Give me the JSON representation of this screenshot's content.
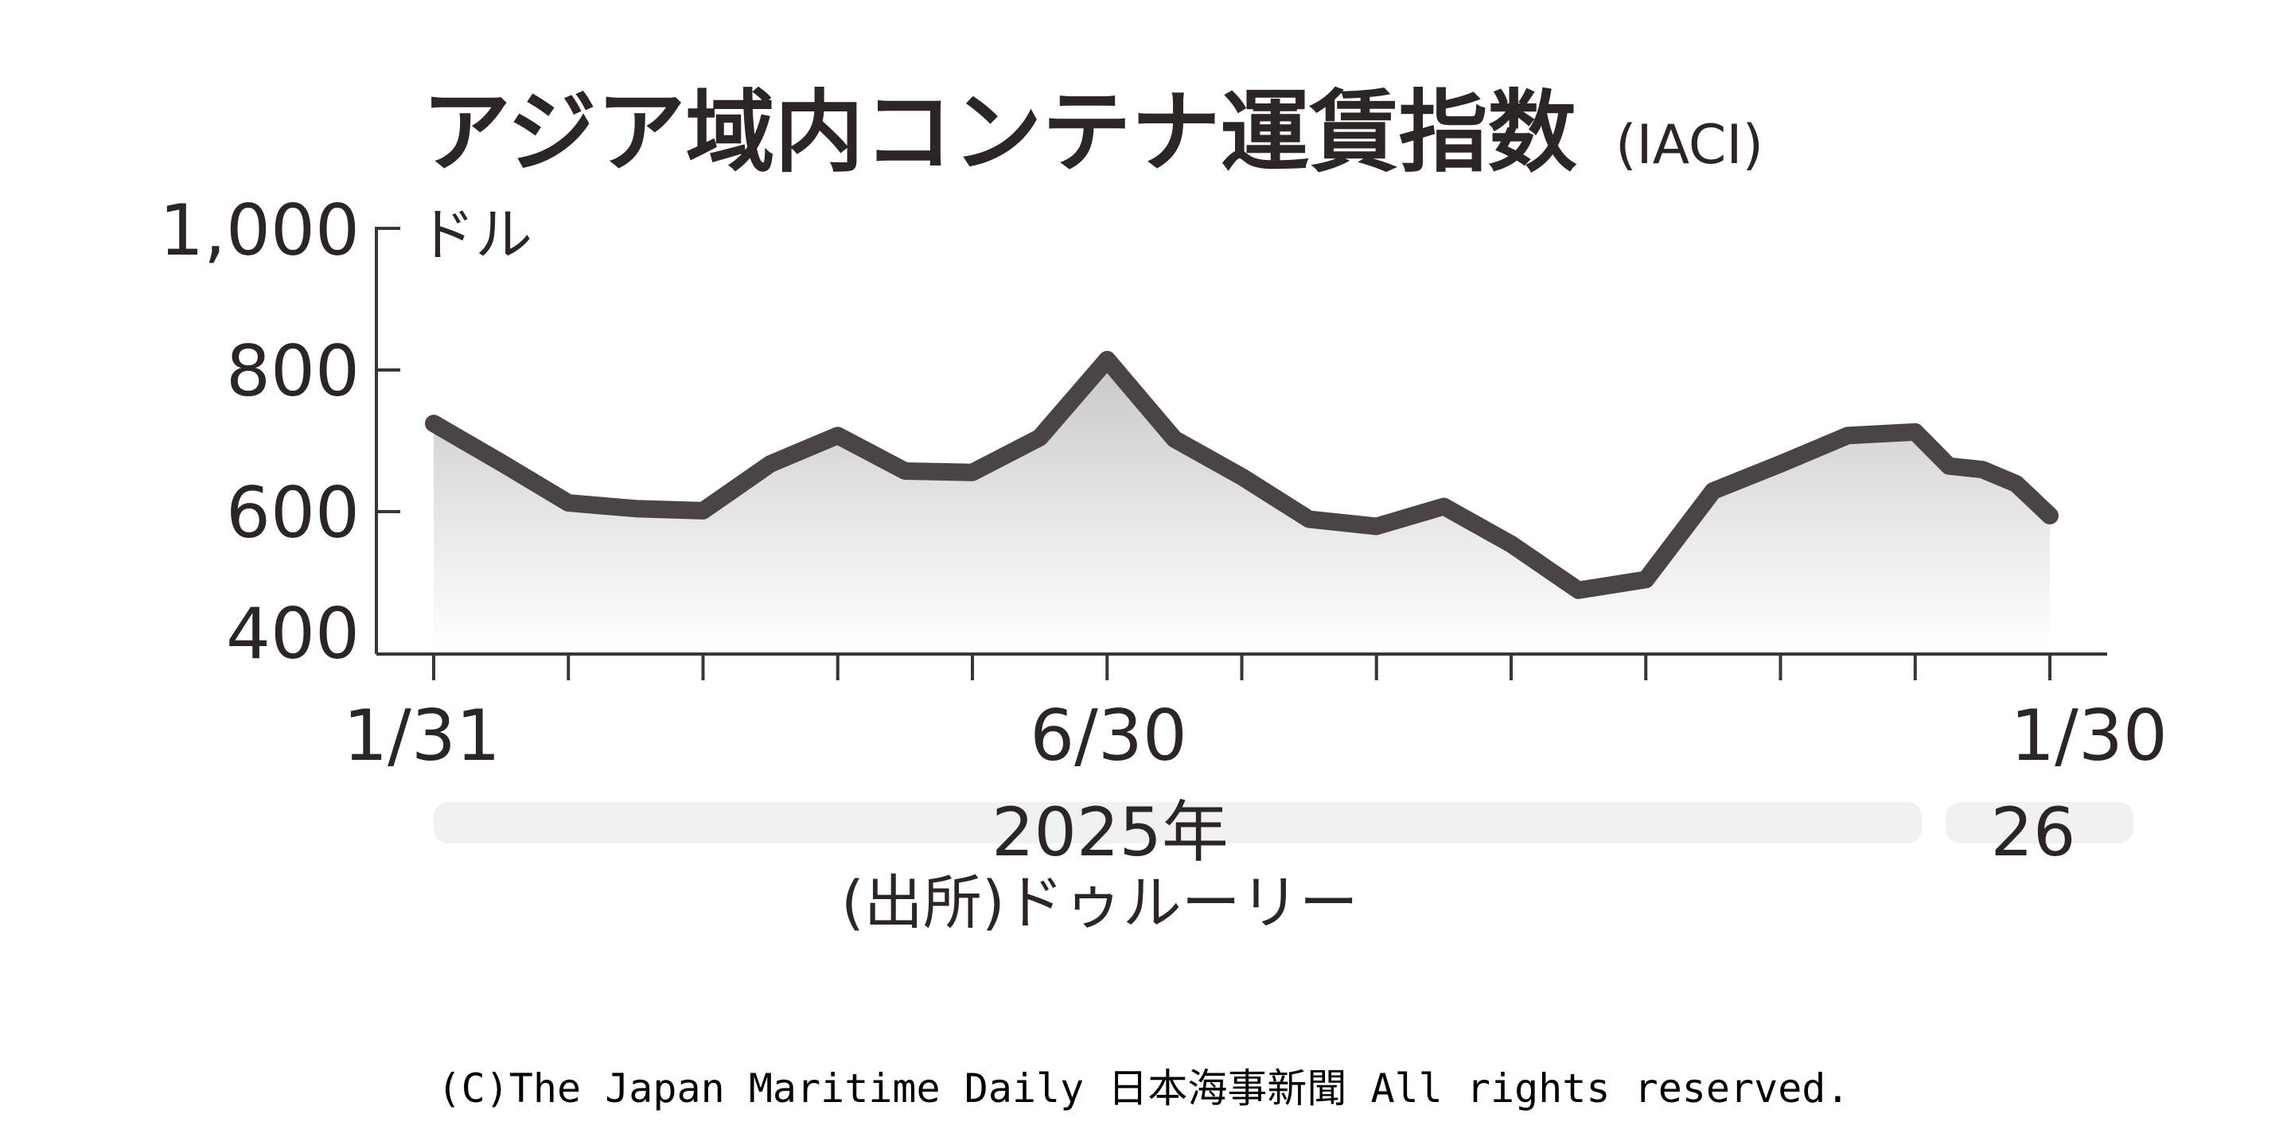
{
  "chart_data": {
    "type": "area",
    "title": "アジア域内コンテナ運賃指数",
    "title_suffix": "(IACI)",
    "y_unit": "ドル",
    "ylim": [
      400,
      1000
    ],
    "y_ticks": [
      "1,000",
      "800",
      "600",
      "400"
    ],
    "y_tick_values": [
      1000,
      800,
      600,
      400
    ],
    "x_labels": [
      {
        "label": "1/31",
        "index": 0
      },
      {
        "label": "6/30",
        "index": 10
      },
      {
        "label": "1/30",
        "index": 24
      }
    ],
    "x_tick_count": 13,
    "year_bands": [
      {
        "label": "2025年"
      },
      {
        "label": "26"
      }
    ],
    "series": [
      {
        "values": [
          725,
          670,
          613,
          605,
          602,
          668,
          708,
          658,
          656,
          705,
          815,
          703,
          650,
          590,
          580,
          608,
          555,
          490,
          505,
          630,
          668,
          708,
          713,
          665,
          660,
          640,
          595
        ]
      }
    ],
    "x": [
      0,
      1,
      2,
      3,
      4,
      5,
      6,
      7,
      8,
      9,
      10,
      11,
      12,
      13,
      14,
      15,
      16,
      17,
      18,
      19,
      20,
      21,
      22,
      22.5,
      23,
      23.5,
      24
    ],
    "source": "(出所)ドゥルーリー",
    "colors": {
      "line": "#4a4446",
      "text": "#2b2526",
      "axis": "#3b3536",
      "band": "#f1f1f1"
    }
  },
  "copyright": "(C)The Japan Maritime Daily 日本海事新聞 All rights reserved."
}
